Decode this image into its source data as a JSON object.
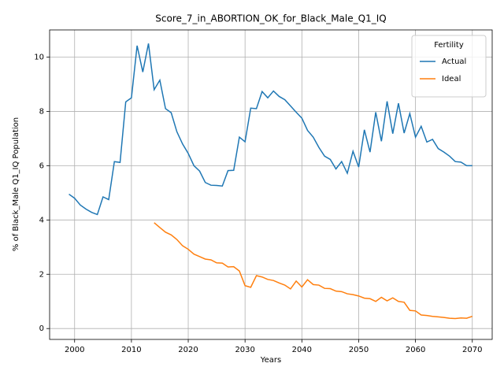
{
  "chart_data": {
    "type": "line",
    "title": "Score_7_in_ABORTION_OK_for_Black_Male_Q1_IQ",
    "x_label": "Years",
    "y_label": "% of Black_Male Q1_IQ Population",
    "x": [
      1999,
      2000,
      2001,
      2002,
      2003,
      2004,
      2005,
      2006,
      2007,
      2008,
      2009,
      2010,
      2011,
      2012,
      2013,
      2014,
      2015,
      2016,
      2017,
      2018,
      2019,
      2020,
      2021,
      2022,
      2023,
      2024,
      2025,
      2026,
      2027,
      2028,
      2029,
      2030,
      2031,
      2032,
      2033,
      2034,
      2035,
      2036,
      2037,
      2038,
      2039,
      2040,
      2041,
      2042,
      2043,
      2044,
      2045,
      2046,
      2047,
      2048,
      2049,
      2050,
      2051,
      2052,
      2053,
      2054,
      2055,
      2056,
      2057,
      2058,
      2059,
      2060,
      2061,
      2062,
      2063,
      2064,
      2065,
      2066,
      2067,
      2068,
      2069,
      2070
    ],
    "series": [
      {
        "name": "Actual",
        "color": "#1f77b4",
        "values": [
          4.95,
          4.8,
          4.55,
          4.4,
          4.28,
          4.2,
          4.85,
          4.75,
          6.15,
          6.12,
          8.35,
          8.5,
          10.42,
          9.45,
          10.5,
          8.8,
          9.15,
          8.1,
          7.95,
          7.25,
          6.8,
          6.45,
          6.0,
          5.8,
          5.38,
          5.28,
          5.27,
          5.25,
          5.82,
          5.83,
          7.05,
          6.88,
          8.12,
          8.1,
          8.73,
          8.5,
          8.75,
          8.55,
          8.43,
          8.2,
          7.97,
          7.75,
          7.3,
          7.05,
          6.67,
          6.35,
          6.23,
          5.88,
          6.15,
          5.72,
          6.53,
          5.95,
          7.32,
          6.5,
          7.97,
          6.9,
          8.37,
          7.18,
          8.3,
          7.2,
          7.92,
          7.05,
          7.45,
          6.87,
          6.97,
          6.63,
          6.5,
          6.35,
          6.15,
          6.13,
          6.0,
          6.0
        ]
      },
      {
        "name": "Ideal",
        "color": "#ff7f0e",
        "values": [
          null,
          null,
          null,
          null,
          null,
          null,
          null,
          null,
          null,
          null,
          null,
          null,
          null,
          null,
          null,
          3.9,
          3.72,
          3.55,
          3.45,
          3.28,
          3.05,
          2.92,
          2.74,
          2.65,
          2.56,
          2.53,
          2.42,
          2.41,
          2.27,
          2.28,
          2.12,
          1.58,
          1.52,
          1.95,
          1.9,
          1.81,
          1.77,
          1.68,
          1.6,
          1.46,
          1.75,
          1.53,
          1.8,
          1.62,
          1.6,
          1.48,
          1.47,
          1.38,
          1.36,
          1.28,
          1.25,
          1.2,
          1.12,
          1.1,
          1.0,
          1.15,
          1.02,
          1.13,
          1.0,
          0.97,
          0.67,
          0.65,
          0.5,
          0.48,
          0.45,
          0.43,
          0.41,
          0.38,
          0.37,
          0.39,
          0.38,
          0.45
        ]
      }
    ],
    "xlim": [
      1995.6,
      2073.5
    ],
    "ylim": [
      -0.4,
      11.0
    ],
    "xticks": [
      2000,
      2010,
      2020,
      2030,
      2040,
      2050,
      2060,
      2070
    ],
    "yticks": [
      0,
      2,
      4,
      6,
      8,
      10
    ],
    "grid": true,
    "legend_title": "Fertility",
    "legend_loc": "upper right"
  }
}
